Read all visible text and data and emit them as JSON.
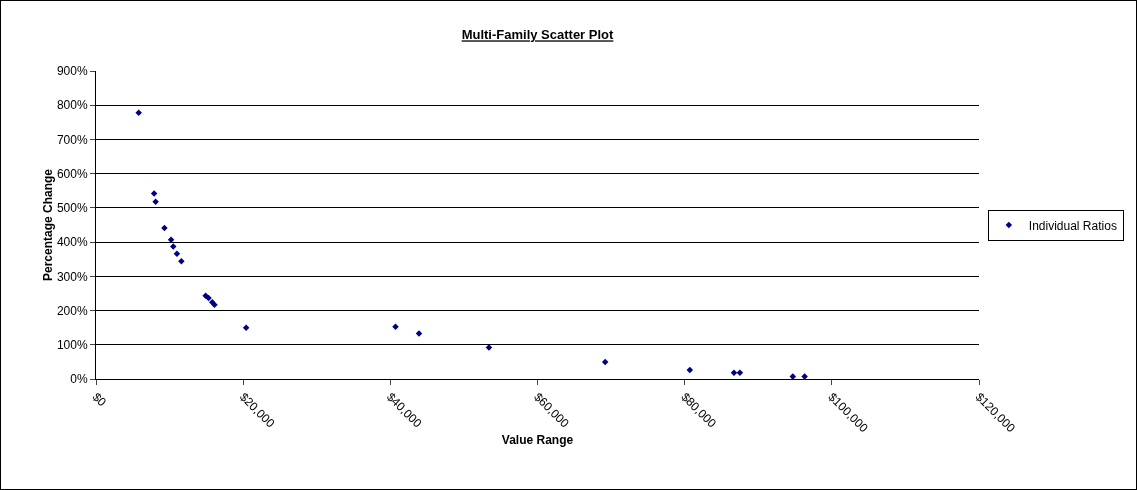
{
  "chart_data": {
    "type": "scatter",
    "title": "Multi-Family Scatter Plot",
    "xlabel": "Value Range",
    "ylabel": "Percentage Change",
    "series": [
      {
        "name": "Individual Ratios",
        "color": "#000080",
        "x": [
          5800,
          7900,
          8100,
          9300,
          10200,
          10500,
          11000,
          11600,
          14900,
          15300,
          15800,
          16100,
          20400,
          40700,
          43900,
          53400,
          69200,
          80700,
          86700,
          87500,
          94700,
          96300
        ],
        "values": [
          778,
          542,
          518,
          441,
          407,
          387,
          366,
          344,
          243,
          237,
          224,
          217,
          150,
          153,
          133,
          92,
          50,
          26,
          18,
          18,
          7,
          7
        ]
      }
    ],
    "xlim": [
      0,
      120000
    ],
    "xticks": [
      {
        "value": 0,
        "label": "$0"
      },
      {
        "value": 20000,
        "label": "$20,000"
      },
      {
        "value": 40000,
        "label": "$40,000"
      },
      {
        "value": 60000,
        "label": "$60,000"
      },
      {
        "value": 80000,
        "label": "$80,000"
      },
      {
        "value": 100000,
        "label": "$100,000"
      },
      {
        "value": 120000,
        "label": "$120,000"
      }
    ],
    "ylim": [
      0,
      900
    ],
    "yticks": [
      {
        "value": 0,
        "label": "0%"
      },
      {
        "value": 100,
        "label": "100%"
      },
      {
        "value": 200,
        "label": "200%"
      },
      {
        "value": 300,
        "label": "300%"
      },
      {
        "value": 400,
        "label": "400%"
      },
      {
        "value": 500,
        "label": "500%"
      },
      {
        "value": 600,
        "label": "600%"
      },
      {
        "value": 700,
        "label": "700%"
      },
      {
        "value": 800,
        "label": "800%"
      },
      {
        "value": 900,
        "label": "900%"
      }
    ],
    "grid": "y",
    "legend": "right",
    "marker": "diamond"
  }
}
